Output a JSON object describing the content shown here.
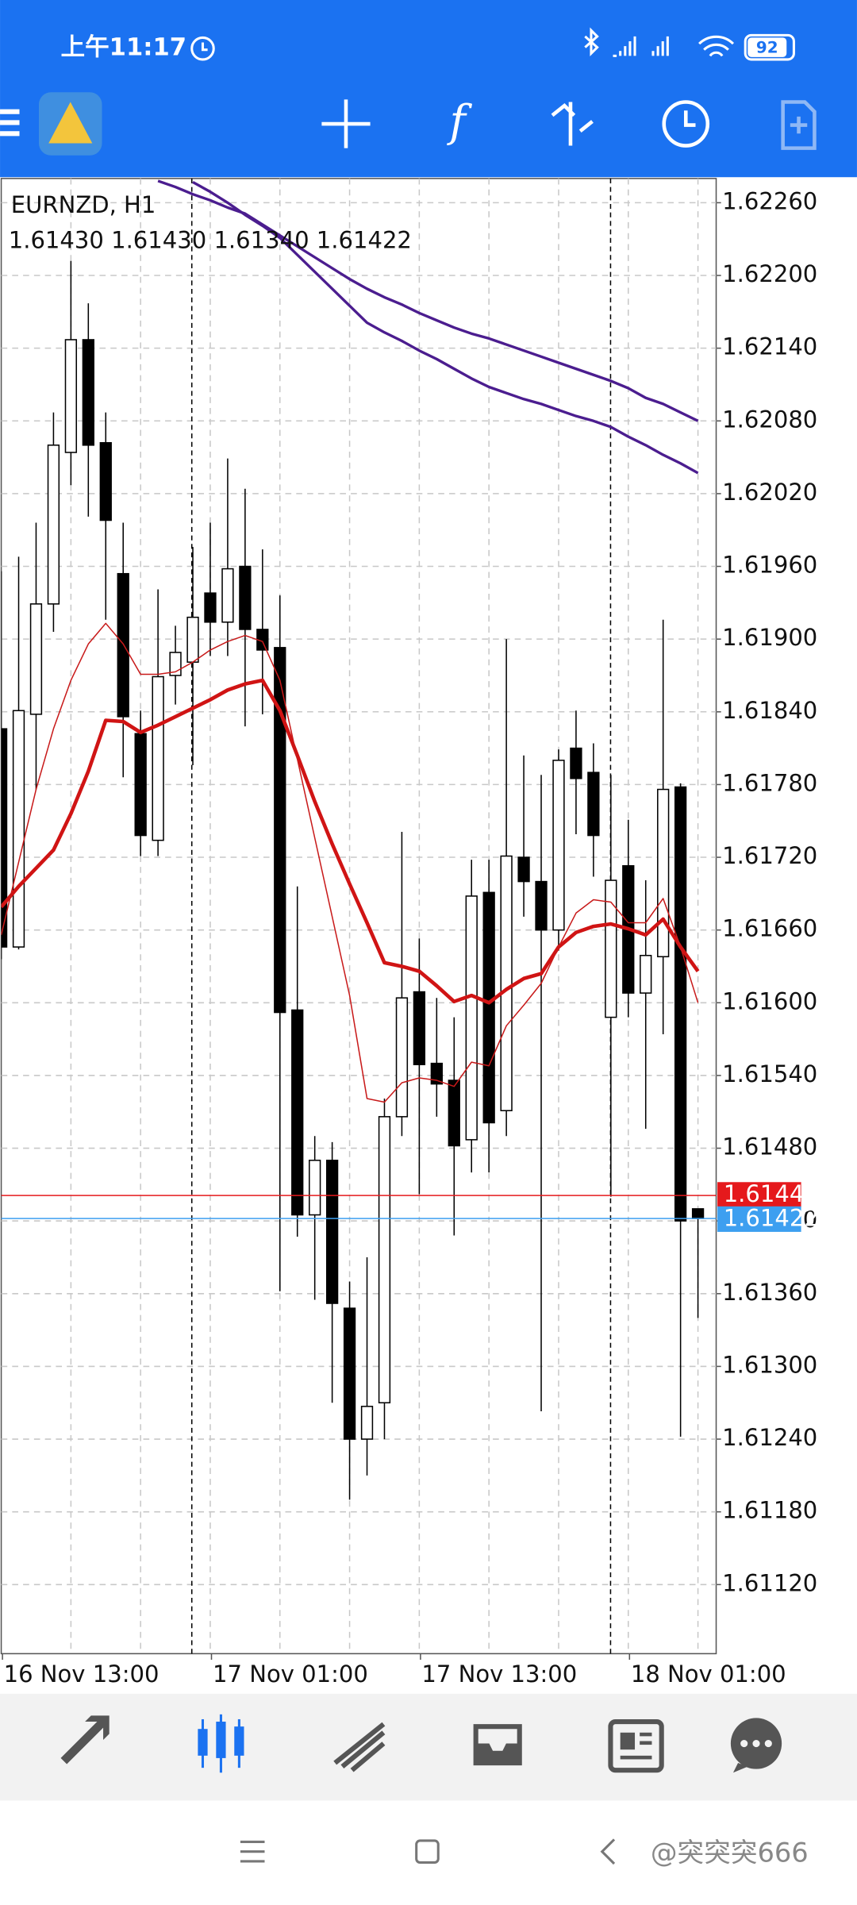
{
  "status_bar": {
    "time": "上午11:17",
    "battery": "92"
  },
  "watermark": "@突突突666",
  "chart_data": {
    "type": "candlestick",
    "title": "EURNZD, H1",
    "subtitle": "1.61430 1.61430 1.61340 1.61422",
    "categories": [
      "16 Nov 13:00",
      null,
      null,
      null,
      null,
      null,
      null,
      null,
      null,
      null,
      null,
      null,
      "17 Nov 01:00",
      null,
      null,
      null,
      null,
      null,
      null,
      null,
      null,
      null,
      null,
      null,
      "17 Nov 13:00",
      null,
      null,
      null,
      null,
      null,
      null,
      null,
      null,
      null,
      null,
      null,
      "18 Nov 01:00",
      null,
      null,
      null,
      null
    ],
    "open": [
      1.61826,
      1.61646,
      1.61838,
      1.61929,
      1.62054,
      1.62147,
      1.62062,
      1.61954,
      1.61822,
      1.61734,
      1.6187,
      1.61881,
      1.61938,
      1.61914,
      1.6196,
      1.61908,
      1.61893,
      1.61594,
      1.61425,
      1.6147,
      1.61348,
      1.6124,
      1.6127,
      1.61506,
      1.61609,
      1.6155,
      1.61536,
      1.61487,
      1.61691,
      1.61511,
      1.6172,
      1.617,
      1.6166,
      1.6181,
      1.6179,
      1.61588,
      1.61713,
      1.61608,
      1.61638,
      1.61778,
      1.6143
    ],
    "high": [
      1.61956,
      1.61968,
      1.61996,
      1.62087,
      1.62212,
      1.62177,
      1.62087,
      1.61996,
      1.61841,
      1.61941,
      1.61911,
      1.61976,
      1.61996,
      1.62049,
      1.62024,
      1.61974,
      1.61936,
      1.61696,
      1.6149,
      1.61485,
      1.6137,
      1.6139,
      1.61521,
      1.61741,
      1.61653,
      1.61604,
      1.61588,
      1.61718,
      1.61718,
      1.619,
      1.61804,
      1.61788,
      1.61809,
      1.61841,
      1.61814,
      1.61788,
      1.61751,
      1.61701,
      1.61916,
      1.61781,
      1.6143
    ],
    "low": [
      1.61636,
      1.61644,
      1.61776,
      1.61906,
      1.62027,
      1.62001,
      1.61916,
      1.61786,
      1.61721,
      1.61721,
      1.61846,
      1.61796,
      1.61886,
      1.61886,
      1.61828,
      1.61838,
      1.61362,
      1.61407,
      1.61355,
      1.6127,
      1.6119,
      1.6121,
      1.6124,
      1.6149,
      1.61442,
      1.61506,
      1.61408,
      1.6146,
      1.6146,
      1.6149,
      1.61671,
      1.61263,
      1.61643,
      1.61739,
      1.61704,
      1.6144,
      1.61588,
      1.61496,
      1.61574,
      1.61242,
      1.6134
    ],
    "close": [
      1.61646,
      1.61841,
      1.61929,
      1.6206,
      1.62147,
      1.6206,
      1.61998,
      1.61836,
      1.61738,
      1.61869,
      1.61889,
      1.61918,
      1.61914,
      1.61958,
      1.61908,
      1.61891,
      1.61592,
      1.61425,
      1.6147,
      1.61352,
      1.6124,
      1.61267,
      1.61506,
      1.61604,
      1.61549,
      1.61533,
      1.61482,
      1.61688,
      1.61501,
      1.61721,
      1.617,
      1.6166,
      1.618,
      1.61785,
      1.61738,
      1.61701,
      1.61608,
      1.61639,
      1.61776,
      1.6142,
      1.61422
    ],
    "lines": [
      {
        "color": "#4b1d8f",
        "width": 2.2,
        "values": [
          null,
          null,
          null,
          null,
          null,
          null,
          null,
          null,
          null,
          1.62278,
          1.62273,
          1.62267,
          1.62262,
          1.62256,
          1.62251,
          1.62242,
          1.62233,
          1.62224,
          1.62215,
          1.62206,
          1.62197,
          1.62189,
          1.62182,
          1.62176,
          1.62169,
          1.62163,
          1.62157,
          1.62152,
          1.62148,
          1.62143,
          1.62138,
          1.62133,
          1.62128,
          1.62123,
          1.62118,
          1.62113,
          1.62107,
          1.62099,
          1.62094,
          1.62087,
          1.6208
        ]
      },
      {
        "color": "#4b1d8f",
        "width": 2.2,
        "values": [
          null,
          null,
          null,
          null,
          null,
          null,
          null,
          null,
          null,
          null,
          null,
          1.62277,
          1.62269,
          1.6226,
          1.6225,
          1.62241,
          1.62231,
          1.62217,
          1.62203,
          1.62189,
          1.62175,
          1.62161,
          1.62153,
          1.62146,
          1.62138,
          1.62131,
          1.62123,
          1.62115,
          1.62108,
          1.62103,
          1.62098,
          1.62094,
          1.62089,
          1.62084,
          1.6208,
          1.62075,
          1.62067,
          1.6206,
          1.62052,
          1.62045,
          1.62037
        ]
      },
      {
        "color": "#d01414",
        "width": 3,
        "values": [
          1.61679,
          1.61696,
          1.61711,
          1.61726,
          1.61756,
          1.61791,
          1.61833,
          1.61832,
          1.61823,
          1.61829,
          1.61836,
          1.61843,
          1.6185,
          1.61858,
          1.61863,
          1.61866,
          1.61841,
          1.61804,
          1.61766,
          1.61731,
          1.61698,
          1.61666,
          1.61633,
          1.6163,
          1.61626,
          1.61614,
          1.61601,
          1.61606,
          1.616,
          1.61611,
          1.6162,
          1.61624,
          1.61646,
          1.61658,
          1.61663,
          1.61665,
          1.61661,
          1.61656,
          1.61669,
          1.61646,
          1.61626
        ]
      },
      {
        "color": "#c81a1a",
        "width": 1,
        "values": [
          1.61656,
          1.61716,
          1.61776,
          1.61826,
          1.61866,
          1.61896,
          1.61913,
          1.61896,
          1.61871,
          1.61871,
          1.61873,
          1.61881,
          1.61891,
          1.61898,
          1.61903,
          1.61898,
          1.61866,
          1.61801,
          1.61736,
          1.61671,
          1.61606,
          1.61521,
          1.61518,
          1.61534,
          1.61538,
          1.61536,
          1.61531,
          1.61551,
          1.61548,
          1.61581,
          1.61598,
          1.61616,
          1.61646,
          1.61674,
          1.61685,
          1.61683,
          1.61666,
          1.61666,
          1.61686,
          1.61646,
          1.616
        ]
      }
    ],
    "price_lines": [
      {
        "value": 1.61441,
        "color": "#e5191c"
      },
      {
        "value": 1.61422,
        "color": "#3d9ff0"
      }
    ],
    "ylim": [
      1.61063,
      1.6228
    ],
    "yticks": [
      {
        "value": 1.6226,
        "label": "1.62260"
      },
      {
        "value": 1.622,
        "label": "1.62200"
      },
      {
        "value": 1.6214,
        "label": "1.62140"
      },
      {
        "value": 1.6208,
        "label": "1.62080"
      },
      {
        "value": 1.6202,
        "label": "1.62020"
      },
      {
        "value": 1.6196,
        "label": "1.61960"
      },
      {
        "value": 1.619,
        "label": "1.61900"
      },
      {
        "value": 1.6184,
        "label": "1.61840"
      },
      {
        "value": 1.6178,
        "label": "1.61780"
      },
      {
        "value": 1.6172,
        "label": "1.61720"
      },
      {
        "value": 1.6166,
        "label": "1.61660"
      },
      {
        "value": 1.616,
        "label": "1.61600"
      },
      {
        "value": 1.6154,
        "label": "1.61540"
      },
      {
        "value": 1.6148,
        "label": "1.61480"
      },
      {
        "value": 1.6142,
        "label": "1.61420"
      },
      {
        "value": 1.6136,
        "label": "1.61360"
      },
      {
        "value": 1.613,
        "label": "1.61300"
      },
      {
        "value": 1.6124,
        "label": "1.61240"
      },
      {
        "value": 1.6118,
        "label": "1.61180"
      },
      {
        "value": 1.6112,
        "label": "1.61120"
      }
    ],
    "grid": true,
    "bull_color": "#ffffff",
    "bear_color": "#000000"
  }
}
